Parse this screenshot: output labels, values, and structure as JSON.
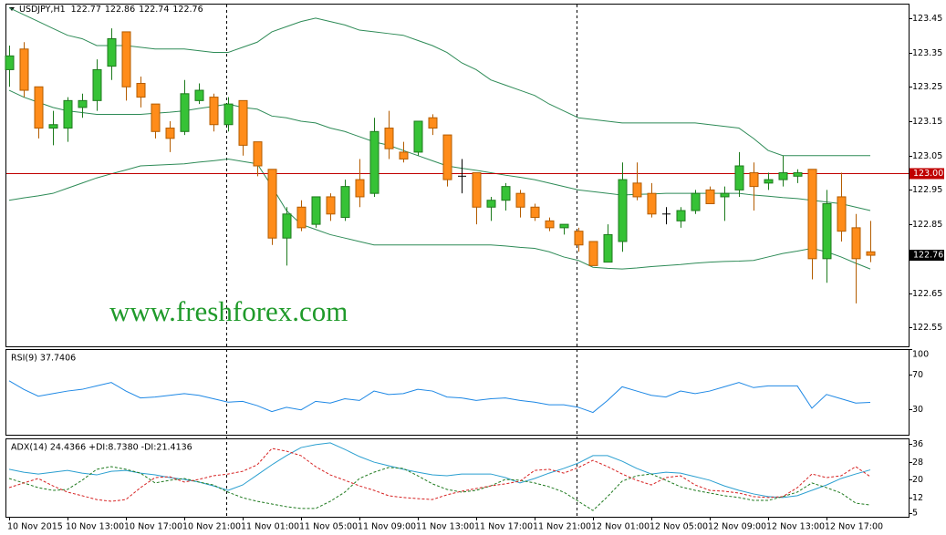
{
  "chart_data": [
    {
      "type": "candlestick",
      "title": "USDJPY,H1",
      "watermark": "www.freshforex.com",
      "categories": [
        "10 Nov 2015",
        null,
        null,
        null,
        "10 Nov 13:00",
        null,
        null,
        null,
        "10 Nov 17:00",
        null,
        null,
        null,
        "10 Nov 21:00",
        null,
        null,
        null,
        "11 Nov 01:00",
        null,
        null,
        null,
        "11 Nov 05:00",
        null,
        null,
        null,
        "11 Nov 09:00",
        null,
        null,
        null,
        "11 Nov 13:00",
        null,
        null,
        null,
        "11 Nov 17:00",
        null,
        null,
        null,
        "11 Nov 21:00",
        null,
        null,
        null,
        "12 Nov 01:00",
        null,
        null,
        null,
        "12 Nov 05:00",
        null,
        null,
        null,
        "12 Nov 09:00",
        null,
        null,
        null,
        "12 Nov 13:00",
        null,
        null,
        null,
        "12 Nov 17:00",
        null,
        null,
        null
      ],
      "open": [
        123.3,
        123.36,
        123.25,
        123.13,
        123.13,
        123.19,
        123.21,
        123.31,
        123.41,
        123.26,
        123.2,
        123.13,
        123.12,
        123.21,
        123.22,
        123.14,
        123.21,
        123.09,
        123.01,
        122.81,
        122.9,
        122.85,
        122.93,
        122.87,
        122.98,
        122.94,
        123.13,
        123.06,
        123.06,
        123.16,
        123.11,
        122.99,
        123.0,
        122.9,
        122.92,
        122.94,
        122.9,
        122.86,
        122.84,
        122.83,
        122.8,
        122.74,
        122.8,
        122.97,
        122.94,
        122.88,
        122.86,
        122.89,
        122.95,
        122.93,
        122.95,
        123.0,
        122.97,
        122.98,
        122.99,
        123.01,
        122.75,
        122.93,
        122.84,
        122.77
      ],
      "high": [
        123.37,
        123.38,
        123.25,
        123.18,
        123.22,
        123.23,
        123.33,
        123.42,
        123.41,
        123.28,
        123.2,
        123.15,
        123.27,
        123.26,
        123.23,
        123.22,
        123.21,
        123.09,
        123.01,
        122.9,
        122.92,
        122.93,
        122.94,
        122.98,
        123.04,
        123.16,
        123.18,
        123.09,
        123.15,
        123.17,
        123.11,
        123.04,
        123.0,
        122.93,
        122.97,
        122.95,
        122.91,
        122.87,
        122.85,
        122.84,
        122.8,
        122.85,
        123.03,
        123.03,
        122.97,
        122.9,
        122.9,
        122.95,
        122.96,
        122.96,
        123.06,
        123.03,
        123.0,
        123.05,
        123.01,
        123.01,
        122.95,
        123.0,
        122.88,
        122.86
      ],
      "low": [
        123.25,
        123.22,
        123.1,
        123.08,
        123.09,
        123.16,
        123.18,
        123.27,
        123.21,
        123.19,
        123.1,
        123.06,
        123.11,
        123.2,
        123.12,
        123.12,
        123.05,
        122.99,
        122.79,
        122.73,
        122.83,
        122.84,
        122.86,
        122.86,
        122.9,
        122.93,
        123.04,
        123.03,
        123.05,
        123.11,
        122.96,
        122.94,
        122.85,
        122.86,
        122.89,
        122.87,
        122.86,
        122.83,
        122.82,
        122.77,
        122.73,
        122.74,
        122.77,
        122.92,
        122.87,
        122.85,
        122.84,
        122.88,
        122.91,
        122.86,
        122.93,
        122.89,
        122.95,
        122.96,
        122.97,
        122.69,
        122.68,
        122.8,
        122.62,
        122.74
      ],
      "close": [
        123.34,
        123.24,
        123.13,
        123.14,
        123.21,
        123.21,
        123.3,
        123.39,
        123.25,
        123.22,
        123.12,
        123.1,
        123.23,
        123.24,
        123.14,
        123.2,
        123.08,
        123.02,
        122.81,
        122.88,
        122.84,
        122.93,
        122.88,
        122.96,
        122.93,
        123.12,
        123.07,
        123.04,
        123.15,
        123.13,
        122.98,
        122.99,
        122.9,
        122.92,
        122.96,
        122.9,
        122.87,
        122.84,
        122.85,
        122.79,
        122.73,
        122.82,
        122.98,
        122.93,
        122.88,
        122.88,
        122.89,
        122.94,
        122.91,
        122.94,
        123.02,
        122.96,
        122.98,
        123.0,
        123.0,
        122.75,
        122.91,
        122.83,
        122.75,
        122.76
      ],
      "bands": {
        "color": "#2e8b57",
        "upper": [
          123.48,
          123.46,
          123.44,
          123.42,
          123.4,
          123.39,
          123.37,
          123.37,
          123.37,
          123.365,
          123.36,
          123.36,
          123.36,
          123.355,
          123.35,
          123.35,
          123.365,
          123.38,
          123.41,
          123.425,
          123.44,
          123.45,
          123.44,
          123.43,
          123.415,
          123.41,
          123.405,
          123.4,
          123.385,
          123.37,
          123.35,
          123.32,
          123.3,
          123.27,
          123.255,
          123.24,
          123.225,
          123.2,
          123.18,
          123.16,
          123.155,
          123.15,
          123.145,
          123.145,
          123.145,
          123.145,
          123.145,
          123.145,
          123.14,
          123.135,
          123.13,
          123.1,
          123.065,
          123.05,
          123.05,
          123.05,
          123.05,
          123.05,
          123.05,
          123.05
        ],
        "middle": [
          123.24,
          123.22,
          123.205,
          123.19,
          123.18,
          123.175,
          123.17,
          123.17,
          123.17,
          123.17,
          123.173,
          123.176,
          123.18,
          123.187,
          123.193,
          123.2,
          123.19,
          123.185,
          123.165,
          123.16,
          123.15,
          123.145,
          123.13,
          123.12,
          123.105,
          123.09,
          123.08,
          123.065,
          123.05,
          123.035,
          123.02,
          123.013,
          123.007,
          123.0,
          122.993,
          122.987,
          122.98,
          122.97,
          122.96,
          122.95,
          122.945,
          122.94,
          122.935,
          122.937,
          122.938,
          122.94,
          122.94,
          122.94,
          122.94,
          122.94,
          122.94,
          122.935,
          122.932,
          122.928,
          122.925,
          122.92,
          122.915,
          122.91,
          122.9,
          122.89
        ],
        "lower": [
          122.92,
          122.927,
          122.933,
          122.94,
          122.955,
          122.97,
          122.985,
          122.997,
          123.008,
          123.02,
          123.022,
          123.024,
          123.026,
          123.031,
          123.035,
          123.04,
          123.033,
          123.026,
          122.96,
          122.89,
          122.85,
          122.835,
          122.82,
          122.81,
          122.8,
          122.79,
          122.79,
          122.79,
          122.79,
          122.79,
          122.79,
          122.79,
          122.79,
          122.79,
          122.787,
          122.783,
          122.78,
          122.77,
          122.755,
          122.745,
          122.725,
          122.722,
          122.72,
          122.723,
          122.727,
          122.73,
          122.733,
          122.737,
          122.74,
          122.742,
          122.743,
          122.745,
          122.755,
          122.765,
          122.772,
          122.78,
          122.77,
          122.755,
          122.737,
          122.72
        ]
      },
      "up_color": "#36c236",
      "up_edge": "#1d7a1d",
      "down_color": "#ff8c1a",
      "down_edge": "#b35c00",
      "doji_color": "#000000",
      "level": {
        "value": 123,
        "label": "123.00"
      },
      "level_color": "#c00000",
      "last_color": "#000000",
      "ylim": [
        122.495,
        123.492
      ],
      "yticks": [
        123.45,
        123.35,
        123.25,
        123.15,
        123.05,
        122.95,
        122.85,
        122.65,
        122.55
      ]
    },
    {
      "type": "line",
      "title": "RSI(9) 37.7406",
      "series": [
        {
          "color": "#1e88e5",
          "values": [
            63,
            53,
            45,
            48,
            51,
            53,
            57,
            61,
            51,
            43,
            44,
            46,
            48,
            46,
            42,
            38,
            39,
            34,
            27,
            32,
            29,
            39,
            37,
            42,
            40,
            51,
            47,
            48,
            53,
            51,
            44,
            43,
            40,
            42,
            43,
            40,
            38,
            35,
            35,
            32,
            26,
            40,
            56,
            51,
            46,
            44,
            51,
            48,
            51,
            56,
            61,
            55,
            57,
            57,
            57,
            31,
            47,
            42,
            37,
            37.7406
          ]
        }
      ],
      "ylim": [
        0,
        100
      ],
      "yticks": [
        100,
        70,
        30
      ]
    },
    {
      "type": "line",
      "title": "ADX(14) 24.4366 +DI:8.7380 -DI:21.4136",
      "series": [
        {
          "color": "#2a9fd0",
          "dashed": false,
          "values": [
            24.7,
            23.4,
            22.6,
            23.4,
            24.2,
            23,
            22.2,
            23.8,
            24.2,
            23,
            22.2,
            21,
            20.2,
            19,
            17.3,
            15.3,
            17.7,
            22.2,
            26.7,
            30.8,
            34.4,
            35.7,
            36.5,
            33.6,
            30.4,
            27.9,
            26.3,
            24.7,
            23.4,
            22.2,
            21.8,
            22.6,
            22.6,
            22.6,
            21,
            18.6,
            20.6,
            23,
            25.1,
            27.5,
            30.8,
            30.8,
            28.3,
            25.1,
            22.6,
            23.4,
            23,
            21.4,
            19.8,
            17.3,
            15.3,
            13.7,
            12.5,
            12.1,
            12.9,
            15.3,
            17.7,
            20.6,
            22.6,
            24.4366
          ]
        },
        {
          "color": "#1f7a1f",
          "dashed": true,
          "values": [
            20.6,
            18.6,
            16.5,
            15.3,
            15.7,
            19.8,
            24.7,
            25.9,
            24.7,
            23,
            18.6,
            19.8,
            20.6,
            19,
            17.7,
            14.5,
            12,
            10.4,
            9.2,
            8,
            7.2,
            7.2,
            10.4,
            14.5,
            20.6,
            23.4,
            25.5,
            25.1,
            21.8,
            18.2,
            15.7,
            14.5,
            15.3,
            17.3,
            20.2,
            19.8,
            18.6,
            16.9,
            14.5,
            10.4,
            6.3,
            12.5,
            19.4,
            21.8,
            22.6,
            19.8,
            16.9,
            15.3,
            14.1,
            12.9,
            12.1,
            10.8,
            10.8,
            12.5,
            14.5,
            18.6,
            16.5,
            14.1,
            9.6,
            8.738
          ]
        },
        {
          "color": "#d62020",
          "dashed": true,
          "values": [
            16.5,
            18.6,
            20.6,
            17.3,
            14.5,
            12.9,
            11.2,
            10.4,
            11.2,
            16.5,
            21,
            21.4,
            19,
            20.2,
            21.8,
            22.6,
            23.8,
            26.7,
            34,
            32.8,
            30.8,
            25.9,
            22.2,
            19.8,
            17.3,
            15.3,
            12.9,
            12.1,
            11.6,
            11.2,
            13.3,
            14.9,
            16.1,
            17.3,
            18.2,
            19.4,
            24.2,
            24.7,
            23,
            25.5,
            28.7,
            25.9,
            22.6,
            19.8,
            17.7,
            21,
            21.8,
            17.7,
            15.3,
            14.9,
            14.1,
            12.5,
            12.1,
            12.5,
            16.5,
            22.6,
            21,
            21.8,
            25.9,
            21.4136
          ]
        }
      ],
      "ylim": [
        3.5,
        38.5
      ],
      "yticks": [
        36,
        28,
        20,
        12,
        5
      ]
    }
  ]
}
